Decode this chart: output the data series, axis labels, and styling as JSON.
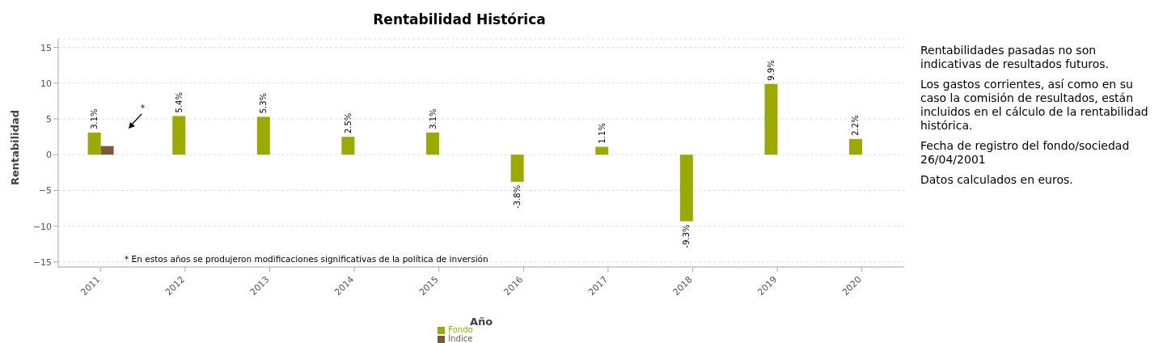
{
  "chart_data": {
    "type": "bar",
    "title": "Rentabilidad Histórica",
    "xlabel": "Año",
    "ylabel": "Rentabilidad",
    "categories": [
      "2011",
      "2012",
      "2013",
      "2014",
      "2015",
      "2016",
      "2017",
      "2018",
      "2019",
      "2020"
    ],
    "series": [
      {
        "name": "Fondo",
        "color": "#9aaa00",
        "values": [
          3.1,
          5.4,
          5.3,
          2.5,
          3.1,
          -3.8,
          1.1,
          -9.3,
          9.9,
          2.2
        ],
        "value_labels": [
          "3.1%",
          "5.4%",
          "5.3%",
          "2.5%",
          "3.1%",
          "-3.8%",
          "1.1%",
          "-9.3%",
          "9.9%",
          "2.2%"
        ]
      },
      {
        "name": "Índice",
        "color": "#7a5a40",
        "values": [
          1.2,
          null,
          null,
          null,
          null,
          null,
          null,
          null,
          null,
          null
        ]
      }
    ],
    "ylim": [
      -15.7,
      16.2
    ],
    "yticks": [
      -15,
      -10,
      -5,
      0,
      5,
      10,
      15
    ],
    "grid": "y",
    "legend": "bottom",
    "annotations": [
      "*",
      "* En estos años se produjeron modificaciones significativas de la política de inversión",
      "Rentabilidades pasadas no son indicativas de resultados futuros.",
      "Los gastos corrientes, así como en su caso la comisión de resultados, están incluidos en el cálculo de la rentabilidad histórica.",
      "Fecha de registro del fondo/sociedad 26/04/2001",
      "Datos calculados en euros."
    ]
  }
}
